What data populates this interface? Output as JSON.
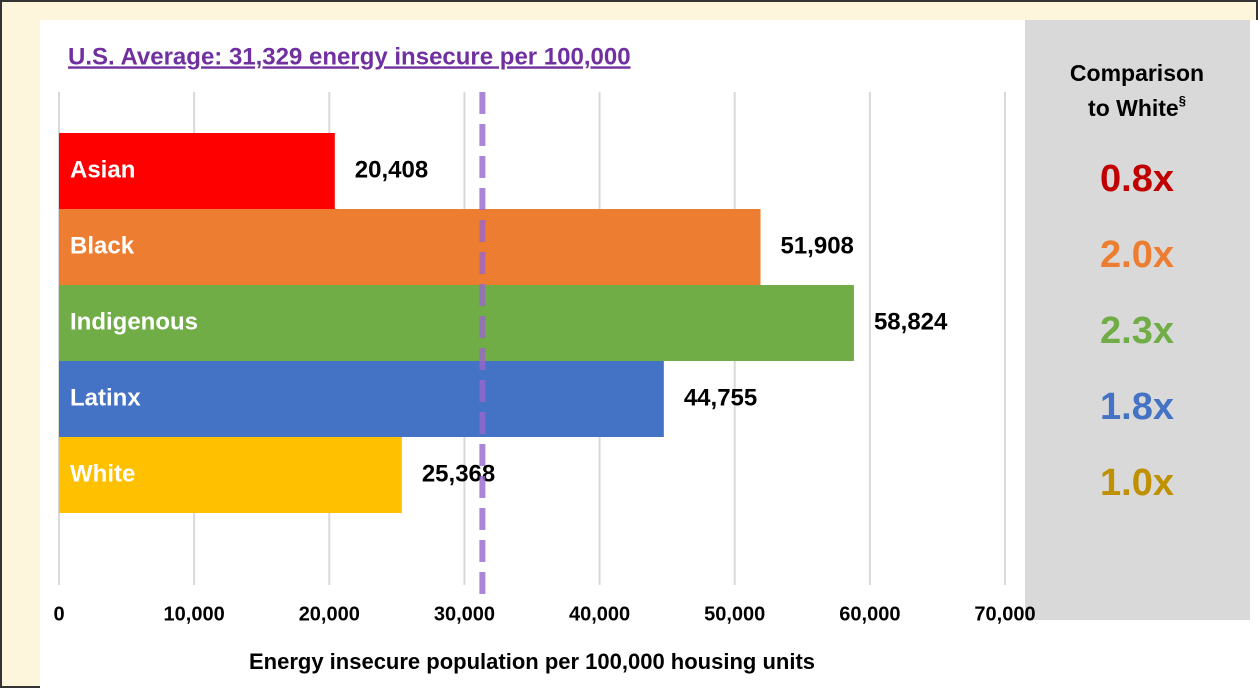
{
  "chart_data": {
    "type": "barh",
    "title": "U.S. Average: 31,329 energy insecure per 100,000",
    "reference_line": 31329,
    "reference_color": "#9966cc",
    "categories": [
      "Asian",
      "Black",
      "Indigenous",
      "Latinx",
      "White"
    ],
    "values": [
      20408,
      51908,
      58824,
      44755,
      25368
    ],
    "value_labels": [
      "20,408",
      "51,908",
      "58,824",
      "44,755",
      "25,368"
    ],
    "colors": [
      "#ff0000",
      "#ed7d31",
      "#70ad47",
      "#4472c4",
      "#ffc000"
    ],
    "xlabel": "Energy insecure population per 100,000 housing units",
    "xlim": [
      0,
      70000
    ],
    "xticks": [
      0,
      {
        "value": 10000,
        "label": "10,000"
      },
      {
        "value": 20000,
        "label": "20,000"
      },
      {
        "value": 30000,
        "label": "30,000"
      },
      {
        "value": 40000,
        "label": "40,000"
      },
      {
        "value": 50000,
        "label": "50,000"
      },
      {
        "value": 60000,
        "label": "60,000"
      },
      {
        "value": 70000,
        "label": "70,000"
      }
    ],
    "grid": true,
    "comparison": {
      "header": [
        "Comparison",
        "to White"
      ],
      "superscript": "§",
      "values": [
        "0.8x",
        "2.0x",
        "2.3x",
        "1.8x",
        "1.0x"
      ],
      "colors": [
        "#c00000",
        "#ed7d31",
        "#70ad47",
        "#4472c4",
        "#bf9000"
      ]
    }
  }
}
